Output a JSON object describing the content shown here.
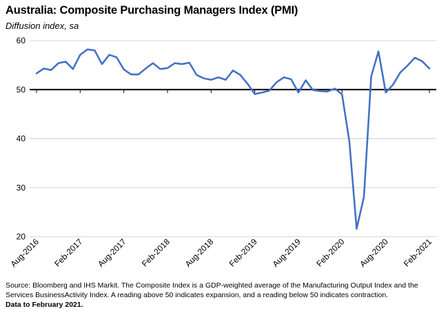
{
  "header": {
    "title": "Australia:  Composite Purchasing Managers Index (PMI)",
    "subtitle": "Diffusion index, sa"
  },
  "footer": {
    "source": "Source: Bloomberg and IHS Markit. The Composite Index is a GDP-weighted average of the Manufacturing Output Index and the Services BusinessActivity Index.  A reading above 50 indicates expansion, and a reading below 50 indicates contraction.",
    "note": "Data to February 2021."
  },
  "chart_data": {
    "type": "line",
    "title": "Australia:  Composite Purchasing Managers Index (PMI)",
    "ylabel": "Diffusion index, sa",
    "ylim": [
      20,
      60
    ],
    "yticks": [
      20,
      30,
      40,
      50,
      60
    ],
    "reference_line": 50,
    "grid": true,
    "line_color": "#4472C4",
    "x_tick_labels": [
      "Aug-2016",
      "Feb-2017",
      "Aug-2017",
      "Feb-2018",
      "Aug-2018",
      "Feb-2019",
      "Aug-2019",
      "Feb-2020",
      "Aug-2020",
      "Feb-2021"
    ],
    "x": [
      "Aug-2016",
      "Sep-2016",
      "Oct-2016",
      "Nov-2016",
      "Dec-2016",
      "Jan-2017",
      "Feb-2017",
      "Mar-2017",
      "Apr-2017",
      "May-2017",
      "Jun-2017",
      "Jul-2017",
      "Aug-2017",
      "Sep-2017",
      "Oct-2017",
      "Nov-2017",
      "Dec-2017",
      "Jan-2018",
      "Feb-2018",
      "Mar-2018",
      "Apr-2018",
      "May-2018",
      "Jun-2018",
      "Jul-2018",
      "Aug-2018",
      "Sep-2018",
      "Oct-2018",
      "Nov-2018",
      "Dec-2018",
      "Jan-2019",
      "Feb-2019",
      "Mar-2019",
      "Apr-2019",
      "May-2019",
      "Jun-2019",
      "Jul-2019",
      "Aug-2019",
      "Sep-2019",
      "Oct-2019",
      "Nov-2019",
      "Dec-2019",
      "Jan-2020",
      "Feb-2020",
      "Mar-2020",
      "Apr-2020",
      "May-2020",
      "Jun-2020",
      "Jul-2020",
      "Aug-2020",
      "Sep-2020",
      "Oct-2020",
      "Nov-2020",
      "Dec-2020",
      "Jan-2021",
      "Feb-2021"
    ],
    "series": [
      {
        "values": [
          53.3,
          54.3,
          54.0,
          55.4,
          55.7,
          54.2,
          57.1,
          58.2,
          58.0,
          55.2,
          57.1,
          56.6,
          54.1,
          53.1,
          53.1,
          54.3,
          55.4,
          54.2,
          54.4,
          55.4,
          55.2,
          55.5,
          53.0,
          52.3,
          52.0,
          52.5,
          52.0,
          53.9,
          53.0,
          51.2,
          49.1,
          49.4,
          49.8,
          51.5,
          52.5,
          52.1,
          49.4,
          51.9,
          49.9,
          49.7,
          49.6,
          50.2,
          49.0,
          39.4,
          21.6,
          28.1,
          52.7,
          57.8,
          49.4,
          51.0,
          53.5,
          54.9,
          56.5,
          55.8,
          54.3
        ]
      }
    ]
  }
}
